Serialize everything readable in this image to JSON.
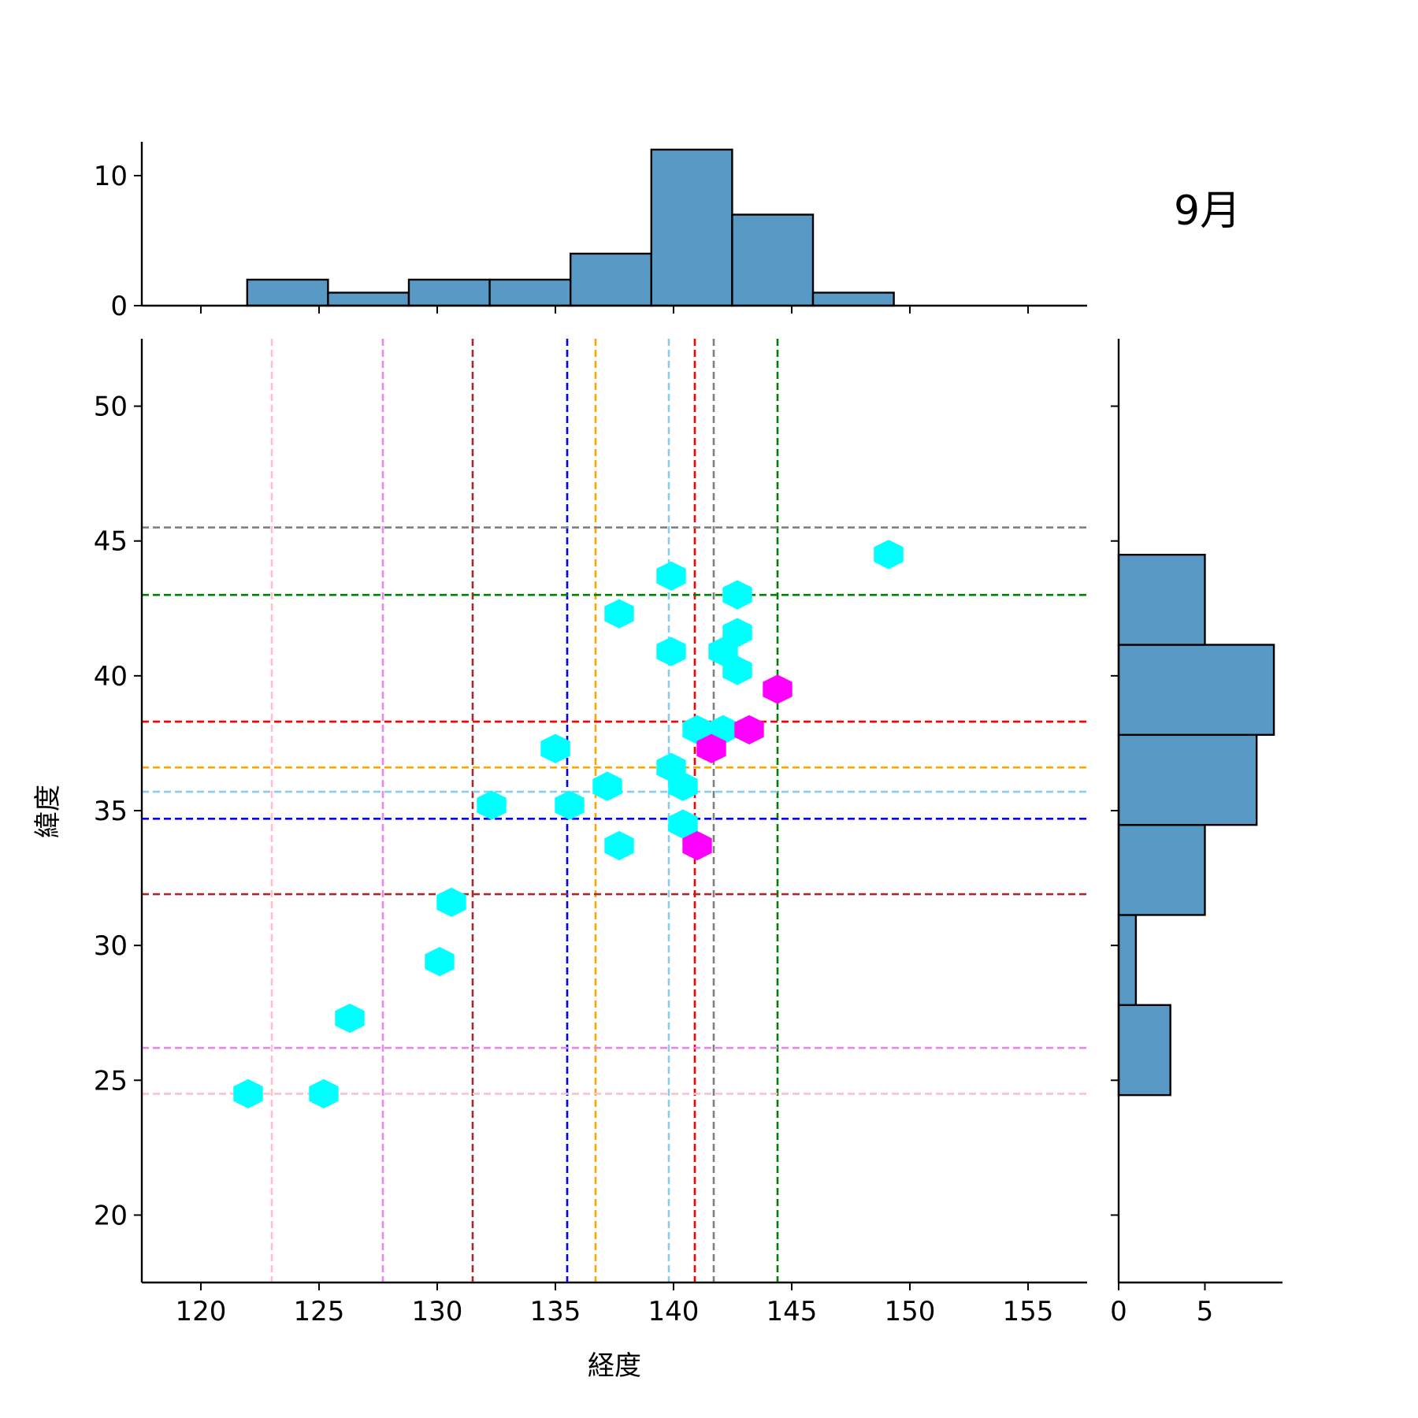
{
  "chart_data": {
    "type": "scatter",
    "subtype": "jointplot-hexbin",
    "title": "9月",
    "xlabel": "経度",
    "ylabel": "緯度",
    "xlim": [
      117.5,
      157.5
    ],
    "ylim": [
      17.5,
      52.5
    ],
    "xticks": [
      120,
      125,
      130,
      135,
      140,
      145,
      150,
      155
    ],
    "yticks": [
      20,
      25,
      30,
      35,
      40,
      45,
      50
    ],
    "hexbins": [
      {
        "x": 122,
        "y": 24.5,
        "color": "#00ffff"
      },
      {
        "x": 125.2,
        "y": 24.5,
        "color": "#00ffff"
      },
      {
        "x": 126.3,
        "y": 27.3,
        "color": "#00ffff"
      },
      {
        "x": 130.1,
        "y": 29.4,
        "color": "#00ffff"
      },
      {
        "x": 130.6,
        "y": 31.6,
        "color": "#00ffff"
      },
      {
        "x": 132.3,
        "y": 35.2,
        "color": "#00ffff"
      },
      {
        "x": 135,
        "y": 37.3,
        "color": "#00ffff"
      },
      {
        "x": 135.6,
        "y": 35.2,
        "color": "#00ffff"
      },
      {
        "x": 137.2,
        "y": 35.9,
        "color": "#00ffff"
      },
      {
        "x": 137.7,
        "y": 33.7,
        "color": "#00ffff"
      },
      {
        "x": 137.7,
        "y": 42.3,
        "color": "#00ffff"
      },
      {
        "x": 139.9,
        "y": 43.7,
        "color": "#00ffff"
      },
      {
        "x": 139.9,
        "y": 40.9,
        "color": "#00ffff"
      },
      {
        "x": 139.9,
        "y": 36.6,
        "color": "#00ffff"
      },
      {
        "x": 140.4,
        "y": 35.9,
        "color": "#00ffff"
      },
      {
        "x": 140.4,
        "y": 34.5,
        "color": "#00ffff"
      },
      {
        "x": 141.0,
        "y": 38.0,
        "color": "#00ffff"
      },
      {
        "x": 142.1,
        "y": 38.0,
        "color": "#00ffff"
      },
      {
        "x": 142.1,
        "y": 40.9,
        "color": "#00ffff"
      },
      {
        "x": 142.7,
        "y": 41.6,
        "color": "#00ffff"
      },
      {
        "x": 142.7,
        "y": 40.2,
        "color": "#00ffff"
      },
      {
        "x": 142.7,
        "y": 43.0,
        "color": "#00ffff"
      },
      {
        "x": 149.1,
        "y": 44.5,
        "color": "#00ffff"
      },
      {
        "x": 141.0,
        "y": 33.7,
        "color": "#ff00ff"
      },
      {
        "x": 141.6,
        "y": 37.3,
        "color": "#ff00ff"
      },
      {
        "x": 143.2,
        "y": 38.0,
        "color": "#ff00ff"
      },
      {
        "x": 144.4,
        "y": 39.5,
        "color": "#ff00ff"
      }
    ],
    "vlines": [
      {
        "x": 123,
        "color": "#ffc0cb"
      },
      {
        "x": 127.7,
        "color": "#ee82ee"
      },
      {
        "x": 131.5,
        "color": "#a52a2a"
      },
      {
        "x": 135.5,
        "color": "#0000ff"
      },
      {
        "x": 136.7,
        "color": "#ffa500"
      },
      {
        "x": 139.8,
        "color": "#87ceeb"
      },
      {
        "x": 140.9,
        "color": "#ff0000"
      },
      {
        "x": 141.7,
        "color": "#808080"
      },
      {
        "x": 144.4,
        "color": "#008000"
      }
    ],
    "hlines": [
      {
        "y": 45.5,
        "color": "#808080"
      },
      {
        "y": 43.0,
        "color": "#008000"
      },
      {
        "y": 38.3,
        "color": "#ff0000"
      },
      {
        "y": 36.6,
        "color": "#ffa500"
      },
      {
        "y": 35.7,
        "color": "#87ceeb"
      },
      {
        "y": 34.7,
        "color": "#0000ff"
      },
      {
        "y": 31.9,
        "color": "#a52a2a"
      },
      {
        "y": 26.2,
        "color": "#ee82ee"
      },
      {
        "y": 24.5,
        "color": "#ffc0cb"
      }
    ],
    "hist_x": {
      "yticks": [
        0,
        10
      ],
      "ylim": [
        0,
        12.6
      ],
      "bins": [
        {
          "x0": 121.96,
          "x1": 125.38,
          "count": 2
        },
        {
          "x0": 125.38,
          "x1": 128.8,
          "count": 1
        },
        {
          "x0": 128.8,
          "x1": 132.22,
          "count": 2
        },
        {
          "x0": 132.22,
          "x1": 135.64,
          "count": 2
        },
        {
          "x0": 135.64,
          "x1": 139.06,
          "count": 4
        },
        {
          "x0": 139.06,
          "x1": 142.48,
          "count": 12
        },
        {
          "x0": 142.48,
          "x1": 145.9,
          "count": 7
        },
        {
          "x0": 145.9,
          "x1": 149.32,
          "count": 1
        }
      ]
    },
    "hist_y": {
      "xticks": [
        0,
        5
      ],
      "xlim": [
        0,
        9.5
      ],
      "bins": [
        {
          "y0": 24.45,
          "y1": 27.79,
          "count": 3
        },
        {
          "y0": 27.79,
          "y1": 31.13,
          "count": 1
        },
        {
          "y0": 31.13,
          "y1": 34.47,
          "count": 5
        },
        {
          "y0": 34.47,
          "y1": 37.81,
          "count": 8
        },
        {
          "y0": 37.81,
          "y1": 41.15,
          "count": 9
        },
        {
          "y0": 41.15,
          "y1": 44.49,
          "count": 5
        }
      ]
    },
    "hist_color": "#5899c6",
    "grid": false
  }
}
